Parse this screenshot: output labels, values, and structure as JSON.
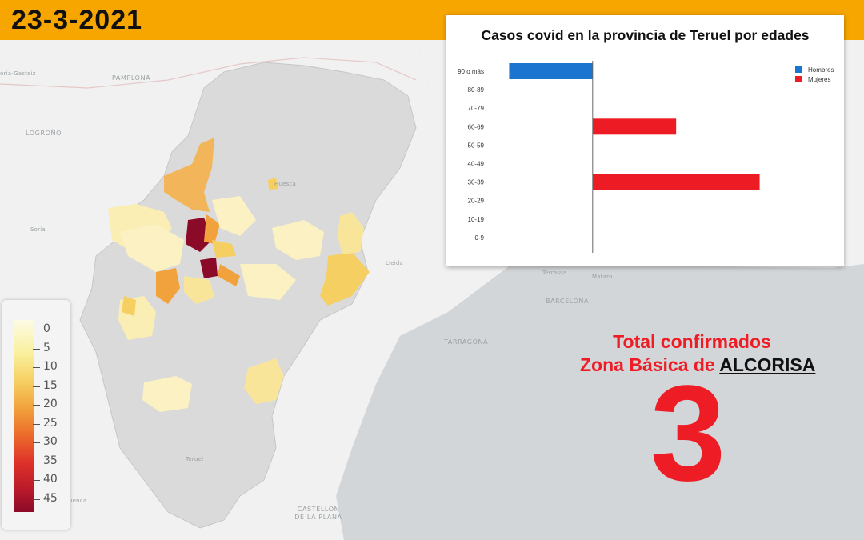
{
  "header": {
    "date": "23-3-2021"
  },
  "map": {
    "place_labels": [
      "PAMPLONA",
      "oria-Gasteiz",
      "LOGROÑO",
      "Soria",
      "Lleida",
      "Terrassa",
      "Mataro",
      "BARCELONA",
      "TARRAGONA",
      "CASTELLON DE LA PLANA",
      "Teruel",
      "Huesca",
      "uenca"
    ],
    "colors": {
      "land": "#f1f1f1",
      "sea": "#d3d6d8",
      "aragon": "#dadada",
      "border": "#c6c6c6"
    }
  },
  "legend": {
    "ticks": [
      "0",
      "5",
      "10",
      "15",
      "20",
      "25",
      "30",
      "35",
      "40",
      "45"
    ],
    "colors": [
      "#fdfbe6",
      "#f9ef9a",
      "#f6cf62",
      "#f2a23c",
      "#ec6b2b",
      "#de3229",
      "#ba1a2a",
      "#8b0a28"
    ]
  },
  "chart_data": {
    "type": "bar",
    "orientation": "horizontal",
    "title": "Casos covid en la provincia de Teruel por edades",
    "categories": [
      "90 o más",
      "80-89",
      "70-79",
      "60-69",
      "50-59",
      "40-49",
      "30-39",
      "20-29",
      "10-19",
      "0-9"
    ],
    "series": [
      {
        "name": "Hombres",
        "color": "#1b75d0",
        "values": [
          -1,
          0,
          0,
          0,
          0,
          0,
          0,
          0,
          0,
          0
        ]
      },
      {
        "name": "Mujeres",
        "color": "#ed1c24",
        "values": [
          0,
          0,
          0,
          1,
          0,
          0,
          2,
          0,
          0,
          0
        ]
      }
    ],
    "xlim": [
      -1.1,
      2.1
    ],
    "legend_position": "top-right",
    "grid": false
  },
  "summary": {
    "line1": "Total confirmados",
    "line2_prefix": "Zona Básica de ",
    "zone": "ALCORISA",
    "total": "3"
  }
}
